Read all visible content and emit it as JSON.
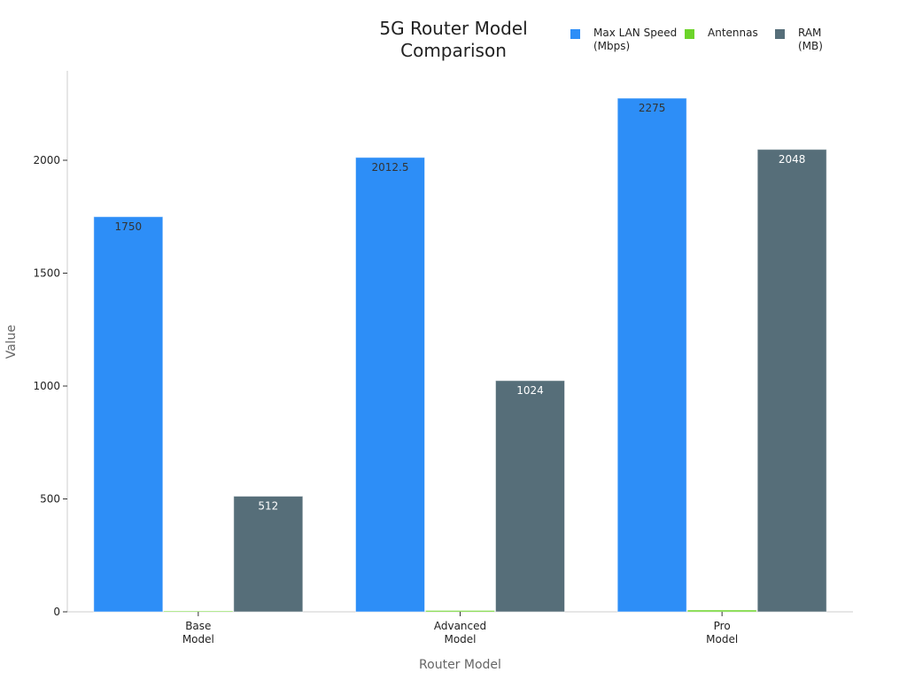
{
  "chart_data": {
    "type": "bar",
    "title": "5G Router Model Comparison",
    "xlabel": "Router Model",
    "ylabel": "Value",
    "categories": [
      "Base\nModel",
      "Advanced\nModel",
      "Pro\nModel"
    ],
    "ylim": [
      0,
      2400
    ],
    "yticks": [
      0,
      500,
      1000,
      1500,
      2000
    ],
    "grid": false,
    "legend_position": "top-right",
    "series": [
      {
        "name": "Max LAN Speed (Mbps)",
        "color": "#2d8ef7",
        "label_color": "#333333",
        "values": [
          1750,
          2012.5,
          2275
        ],
        "labels": [
          "1750",
          "2012.5",
          "2275"
        ]
      },
      {
        "name": "Antennas",
        "color": "#6cd42a",
        "label_color": "#333333",
        "values": [
          4,
          6,
          8
        ],
        "labels": [
          "",
          "",
          ""
        ]
      },
      {
        "name": "RAM (MB)",
        "color": "#566e79",
        "label_color": "#ffffff",
        "values": [
          512,
          1024,
          2048
        ],
        "labels": [
          "512",
          "1024",
          "2048"
        ]
      }
    ]
  }
}
